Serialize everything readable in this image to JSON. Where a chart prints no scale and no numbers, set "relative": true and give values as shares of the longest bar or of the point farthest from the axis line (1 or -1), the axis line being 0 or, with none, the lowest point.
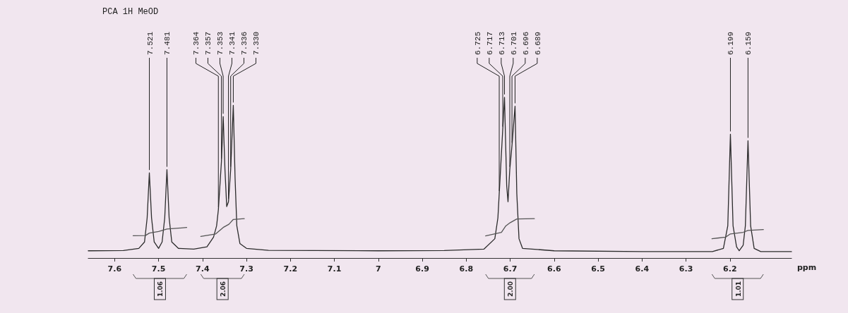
{
  "chart_data": {
    "type": "line",
    "title": "PCA 1H MeOD",
    "xlabel": "ppm",
    "relative": true,
    "marker": "none",
    "x": [
      7.66,
      7.58,
      7.545,
      7.532,
      7.526,
      7.521,
      7.516,
      7.51,
      7.5,
      7.492,
      7.486,
      7.481,
      7.476,
      7.47,
      7.455,
      7.42,
      7.39,
      7.375,
      7.368,
      7.364,
      7.357,
      7.353,
      7.349,
      7.345,
      7.341,
      7.336,
      7.33,
      7.326,
      7.322,
      7.315,
      7.3,
      7.25,
      7.0,
      6.85,
      6.76,
      6.735,
      6.728,
      6.725,
      6.717,
      6.713,
      6.708,
      6.705,
      6.701,
      6.696,
      6.689,
      6.685,
      6.68,
      6.672,
      6.6,
      6.4,
      6.24,
      6.215,
      6.205,
      6.199,
      6.193,
      6.185,
      6.179,
      6.17,
      6.165,
      6.159,
      6.153,
      6.145,
      6.13,
      6.06
    ],
    "series": [
      {
        "color": "#2b2b2b",
        "values": [
          0.045,
          0.047,
          0.06,
          0.1,
          0.25,
          0.53,
          0.25,
          0.1,
          0.06,
          0.1,
          0.25,
          0.55,
          0.25,
          0.1,
          0.06,
          0.055,
          0.07,
          0.13,
          0.2,
          0.3,
          0.6,
          0.88,
          0.55,
          0.32,
          0.35,
          0.55,
          0.95,
          0.5,
          0.2,
          0.09,
          0.06,
          0.048,
          0.045,
          0.047,
          0.055,
          0.12,
          0.25,
          0.4,
          0.8,
          1,
          0.45,
          0.35,
          0.55,
          0.7,
          0.945,
          0.4,
          0.12,
          0.06,
          0.045,
          0.04,
          0.04,
          0.06,
          0.2,
          0.77,
          0.2,
          0.07,
          0.045,
          0.08,
          0.2,
          0.73,
          0.2,
          0.06,
          0.04,
          0.04
        ]
      },
      {
        "color": "#555555",
        "x": [
          7.558,
          7.53,
          7.521,
          7.5,
          7.481,
          7.436,
          7.42,
          7.404,
          7.37,
          7.353,
          7.34,
          7.33,
          7.305,
          6.9,
          6.756,
          6.72,
          6.71,
          6.7,
          6.685,
          6.645,
          6.4,
          6.241,
          6.21,
          6.199,
          6.17,
          6.159,
          6.124
        ],
        "values": [
          0.139,
          0.14,
          0.155,
          0.165,
          0.18,
          0.19,
          null,
          0.134,
          0.15,
          0.19,
          0.21,
          0.24,
          0.245,
          null,
          0.138,
          0.16,
          0.2,
          0.22,
          0.243,
          0.245,
          null,
          0.12,
          0.13,
          0.15,
          0.16,
          0.172,
          0.177
        ]
      }
    ],
    "xlim": [
      7.66,
      6.06
    ],
    "xticks": [
      7.6,
      7.5,
      7.4,
      7.3,
      7.2,
      7.1,
      7.0,
      6.9,
      6.8,
      6.7,
      6.6,
      6.5,
      6.4,
      6.3,
      6.2
    ],
    "annotations": [
      {
        "text": "7.521",
        "x": 7.521,
        "y": 0.53
      },
      {
        "text": "7.481",
        "x": 7.481,
        "y": 0.55
      },
      {
        "text": "7.364",
        "x": 7.364,
        "y": 0.3
      },
      {
        "text": "7.357",
        "x": 7.357,
        "y": 0.6
      },
      {
        "text": "7.353",
        "x": 7.353,
        "y": 0.88
      },
      {
        "text": "7.341",
        "x": 7.341,
        "y": 0.35
      },
      {
        "text": "7.336",
        "x": 7.336,
        "y": 0.55
      },
      {
        "text": "7.330",
        "x": 7.33,
        "y": 0.95
      },
      {
        "text": "6.725",
        "x": 6.725,
        "y": 0.4
      },
      {
        "text": "6.717",
        "x": 6.717,
        "y": 0.8
      },
      {
        "text": "6.713",
        "x": 6.713,
        "y": 1
      },
      {
        "text": "6.701",
        "x": 6.701,
        "y": 0.55
      },
      {
        "text": "6.696",
        "x": 6.696,
        "y": 0.7
      },
      {
        "text": "6.689",
        "x": 6.689,
        "y": 0.945
      },
      {
        "text": "6.199",
        "x": 6.199,
        "y": 0.77
      },
      {
        "text": "6.159",
        "x": 6.159,
        "y": 0.73
      },
      "1.06",
      "2.06",
      "2.00",
      "1.01"
    ]
  }
}
